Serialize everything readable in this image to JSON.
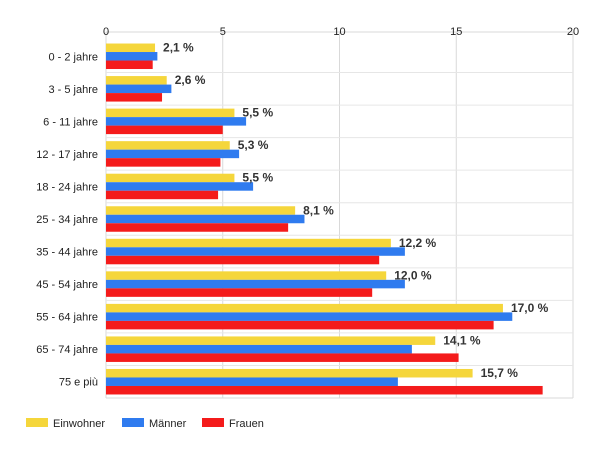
{
  "chart_data": {
    "type": "bar",
    "orientation": "horizontal",
    "categories": [
      "0 - 2 jahre",
      "3 - 5 jahre",
      "6 - 11 jahre",
      "12 - 17 jahre",
      "18 - 24 jahre",
      "25 - 34 jahre",
      "35 - 44 jahre",
      "45 - 54 jahre",
      "55 - 64 jahre",
      "65 - 74 jahre",
      "75 e più"
    ],
    "series": [
      {
        "name": "Einwohner",
        "color": "#F5D63B",
        "values": [
          2.1,
          2.6,
          5.5,
          5.3,
          5.5,
          8.1,
          12.2,
          12.0,
          17.0,
          14.1,
          15.7
        ]
      },
      {
        "name": "Männer",
        "color": "#2F7BEF",
        "values": [
          2.2,
          2.8,
          6.0,
          5.7,
          6.3,
          8.5,
          12.8,
          12.8,
          17.4,
          13.1,
          12.5
        ]
      },
      {
        "name": "Frauen",
        "color": "#F41B1B",
        "values": [
          2.0,
          2.4,
          5.0,
          4.9,
          4.8,
          7.8,
          11.7,
          11.4,
          16.6,
          15.1,
          18.7
        ]
      }
    ],
    "data_labels": [
      "2,1 %",
      "2,6 %",
      "5,5 %",
      "5,3 %",
      "5,5 %",
      "8,1 %",
      "12,2 %",
      "12,0 %",
      "17,0 %",
      "14,1 %",
      "15,7 %"
    ],
    "xlim": [
      0,
      20
    ],
    "x_ticks": [
      0,
      5,
      10,
      15,
      20
    ],
    "x_tick_labels": [
      "0",
      "5",
      "10",
      "15",
      "20"
    ],
    "x_axis_position": "top",
    "grid": true,
    "legend_position": "bottom-left"
  }
}
